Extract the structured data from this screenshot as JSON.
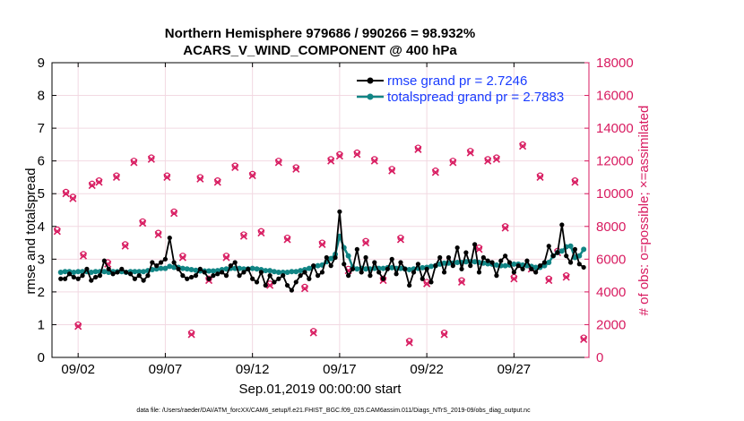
{
  "chart_data": {
    "type": "line",
    "title": "Northern Hemisphere 979686 / 990266 = 98.932%",
    "subtitle": "ACARS_V_WIND_COMPONENT @ 400 hPa",
    "xlabel": "Sep.01,2019 00:00:00 start",
    "ylabel": "rmse and totalspread",
    "y2label": "# of obs: o=possible; ×=assimilated",
    "xlim": [
      0.5,
      31.3
    ],
    "ylim": [
      0,
      9
    ],
    "y2lim": [
      0,
      18000
    ],
    "x_ticks": [
      2,
      7,
      12,
      17,
      22,
      27
    ],
    "x_tick_labels": [
      "09/02",
      "09/07",
      "09/12",
      "09/17",
      "09/22",
      "09/27"
    ],
    "y_ticks": [
      "0",
      "1",
      "2",
      "3",
      "4",
      "5",
      "6",
      "7",
      "8",
      "9"
    ],
    "y2_ticks": [
      "0",
      "2000",
      "4000",
      "6000",
      "8000",
      "10000",
      "12000",
      "14000",
      "16000",
      "18000"
    ],
    "grid": true,
    "legend_position": "top-right",
    "colors": {
      "rmse": "#000000",
      "spread": "#118585",
      "obs": "#d81b60",
      "legend_text": "#1a3cff",
      "right_axis": "#d81b60",
      "grid": "#f2d9e2"
    },
    "series": [
      {
        "name": "rmse grand pr = 2.7246",
        "axis": "left",
        "x": [
          1.0,
          1.25,
          1.5,
          1.75,
          2.0,
          2.25,
          2.5,
          2.75,
          3.0,
          3.25,
          3.5,
          3.75,
          4.0,
          4.25,
          4.5,
          4.75,
          5.0,
          5.25,
          5.5,
          5.75,
          6.0,
          6.25,
          6.5,
          6.75,
          7.0,
          7.25,
          7.5,
          7.75,
          8.0,
          8.25,
          8.5,
          8.75,
          9.0,
          9.25,
          9.5,
          9.75,
          10.0,
          10.25,
          10.5,
          10.75,
          11.0,
          11.25,
          11.5,
          11.75,
          12.0,
          12.25,
          12.5,
          12.75,
          13.0,
          13.25,
          13.5,
          13.75,
          14.0,
          14.25,
          14.5,
          14.75,
          15.0,
          15.25,
          15.5,
          15.75,
          16.0,
          16.25,
          16.5,
          16.75,
          17.0,
          17.25,
          17.5,
          17.75,
          18.0,
          18.25,
          18.5,
          18.75,
          19.0,
          19.25,
          19.5,
          19.75,
          20.0,
          20.25,
          20.5,
          20.75,
          21.0,
          21.25,
          21.5,
          21.75,
          22.0,
          22.25,
          22.5,
          22.75,
          23.0,
          23.25,
          23.5,
          23.75,
          24.0,
          24.25,
          24.5,
          24.75,
          25.0,
          25.25,
          25.5,
          25.75,
          26.0,
          26.25,
          26.5,
          26.75,
          27.0,
          27.25,
          27.5,
          27.75,
          28.0,
          28.25,
          28.5,
          28.75,
          29.0,
          29.25,
          29.5,
          29.75,
          30.0,
          30.25,
          30.5,
          30.75,
          31.0
        ],
        "values": [
          2.4,
          2.4,
          2.55,
          2.45,
          2.4,
          2.5,
          2.7,
          2.35,
          2.45,
          2.5,
          2.95,
          2.7,
          2.55,
          2.6,
          2.7,
          2.6,
          2.55,
          2.4,
          2.5,
          2.35,
          2.5,
          2.9,
          2.8,
          2.9,
          3.0,
          3.65,
          2.9,
          2.7,
          2.5,
          2.4,
          2.45,
          2.5,
          2.7,
          2.6,
          2.4,
          2.5,
          2.55,
          2.6,
          2.5,
          2.8,
          2.9,
          2.5,
          2.6,
          2.7,
          2.4,
          2.3,
          2.6,
          2.2,
          2.5,
          2.3,
          2.4,
          2.5,
          2.2,
          2.05,
          2.3,
          2.5,
          2.6,
          2.4,
          2.8,
          2.5,
          2.6,
          3.05,
          2.8,
          3.05,
          4.45,
          2.85,
          2.5,
          2.7,
          3.3,
          2.6,
          3.05,
          2.5,
          2.9,
          2.6,
          2.4,
          2.7,
          3.0,
          2.55,
          2.9,
          2.7,
          2.2,
          2.6,
          2.85,
          2.4,
          2.7,
          2.3,
          2.8,
          3.05,
          2.6,
          3.05,
          2.8,
          3.35,
          2.7,
          3.2,
          2.8,
          3.45,
          2.6,
          3.05,
          2.95,
          2.9,
          2.5,
          2.95,
          3.1,
          2.9,
          2.6,
          2.8,
          2.7,
          2.95,
          2.7,
          2.6,
          2.8,
          2.9,
          3.4,
          3.1,
          3.2,
          4.05,
          3.1,
          2.9,
          3.3,
          2.85,
          2.75
        ]
      },
      {
        "name": "totalspread grand pr = 2.7883",
        "axis": "left",
        "x": [
          1.0,
          1.25,
          1.5,
          1.75,
          2.0,
          2.25,
          2.5,
          2.75,
          3.0,
          3.25,
          3.5,
          3.75,
          4.0,
          4.25,
          4.5,
          4.75,
          5.0,
          5.25,
          5.5,
          5.75,
          6.0,
          6.25,
          6.5,
          6.75,
          7.0,
          7.25,
          7.5,
          7.75,
          8.0,
          8.25,
          8.5,
          8.75,
          9.0,
          9.25,
          9.5,
          9.75,
          10.0,
          10.25,
          10.5,
          10.75,
          11.0,
          11.25,
          11.5,
          11.75,
          12.0,
          12.25,
          12.5,
          12.75,
          13.0,
          13.25,
          13.5,
          13.75,
          14.0,
          14.25,
          14.5,
          14.75,
          15.0,
          15.25,
          15.5,
          15.75,
          16.0,
          16.25,
          16.5,
          16.75,
          17.0,
          17.25,
          17.5,
          17.75,
          18.0,
          18.25,
          18.5,
          18.75,
          19.0,
          19.25,
          19.5,
          19.75,
          20.0,
          20.25,
          20.5,
          20.75,
          21.0,
          21.25,
          21.5,
          21.75,
          22.0,
          22.25,
          22.5,
          22.75,
          23.0,
          23.25,
          23.5,
          23.75,
          24.0,
          24.25,
          24.5,
          24.75,
          25.0,
          25.25,
          25.5,
          25.75,
          26.0,
          26.25,
          26.5,
          26.75,
          27.0,
          27.25,
          27.5,
          27.75,
          28.0,
          28.25,
          28.5,
          28.75,
          29.0,
          29.25,
          29.5,
          29.75,
          30.0,
          30.25,
          30.5,
          30.75,
          31.0
        ],
        "values": [
          2.6,
          2.62,
          2.62,
          2.6,
          2.62,
          2.62,
          2.62,
          2.6,
          2.62,
          2.62,
          2.62,
          2.6,
          2.62,
          2.62,
          2.62,
          2.6,
          2.62,
          2.62,
          2.62,
          2.62,
          2.65,
          2.68,
          2.7,
          2.72,
          2.72,
          2.78,
          2.75,
          2.75,
          2.72,
          2.7,
          2.68,
          2.66,
          2.64,
          2.64,
          2.64,
          2.64,
          2.65,
          2.68,
          2.7,
          2.72,
          2.72,
          2.72,
          2.7,
          2.7,
          2.72,
          2.7,
          2.68,
          2.65,
          2.65,
          2.62,
          2.6,
          2.6,
          2.6,
          2.62,
          2.62,
          2.65,
          2.68,
          2.72,
          2.78,
          2.8,
          2.82,
          2.92,
          3.02,
          3.15,
          3.7,
          3.35,
          3.1,
          2.75,
          2.7,
          2.72,
          2.7,
          2.7,
          2.72,
          2.72,
          2.72,
          2.74,
          2.74,
          2.72,
          2.72,
          2.7,
          2.68,
          2.7,
          2.72,
          2.74,
          2.75,
          2.78,
          2.8,
          2.85,
          2.88,
          2.88,
          2.88,
          2.9,
          2.9,
          2.92,
          2.92,
          2.92,
          2.9,
          2.88,
          2.86,
          2.85,
          2.82,
          2.8,
          2.8,
          2.82,
          2.85,
          2.85,
          2.82,
          2.8,
          2.78,
          2.75,
          2.75,
          2.8,
          2.9,
          3.1,
          3.2,
          3.25,
          3.38,
          3.4,
          3.05,
          3.1,
          3.3
        ]
      },
      {
        "name": "# of obs possible (o)",
        "axis": "right",
        "x": [
          0.8,
          1.3,
          1.7,
          2.0,
          2.3,
          2.8,
          3.2,
          3.7,
          4.2,
          4.7,
          5.2,
          5.7,
          6.2,
          6.6,
          7.1,
          7.5,
          8.0,
          8.5,
          9.0,
          9.5,
          10.0,
          10.5,
          11.0,
          11.5,
          12.0,
          12.5,
          13.0,
          13.5,
          14.0,
          14.5,
          15.0,
          15.5,
          16.0,
          16.5,
          17.0,
          17.5,
          18.0,
          18.5,
          19.0,
          19.5,
          20.0,
          20.5,
          21.0,
          21.5,
          22.0,
          22.5,
          23.0,
          23.5,
          24.0,
          24.5,
          25.0,
          25.5,
          26.0,
          26.5,
          27.0,
          27.5,
          28.0,
          28.5,
          29.0,
          29.5,
          30.0,
          30.5,
          31.0
        ],
        "values": [
          7800,
          10100,
          9800,
          2000,
          6300,
          10600,
          10800,
          5800,
          11100,
          6900,
          12000,
          8300,
          12200,
          7600,
          11100,
          8900,
          6200,
          1500,
          11000,
          4800,
          10800,
          6200,
          11700,
          7500,
          11200,
          7700,
          4500,
          12000,
          7300,
          11600,
          4300,
          1600,
          7000,
          12100,
          12400,
          5400,
          12500,
          7100,
          12100,
          4800,
          11500,
          7300,
          1000,
          12800,
          4600,
          11400,
          1500,
          12000,
          4700,
          12600,
          6700,
          12100,
          12200,
          8000,
          4900,
          13000,
          5500,
          11100,
          4800,
          6500,
          5000,
          10800,
          1200
        ]
      },
      {
        "name": "# of obs assimilated (×)",
        "axis": "right",
        "x": [
          0.8,
          1.3,
          1.7,
          2.0,
          2.3,
          2.8,
          3.2,
          3.7,
          4.2,
          4.7,
          5.2,
          5.7,
          6.2,
          6.6,
          7.1,
          7.5,
          8.0,
          8.5,
          9.0,
          9.5,
          10.0,
          10.5,
          11.0,
          11.5,
          12.0,
          12.5,
          13.0,
          13.5,
          14.0,
          14.5,
          15.0,
          15.5,
          16.0,
          16.5,
          17.0,
          17.5,
          18.0,
          18.5,
          19.0,
          19.5,
          20.0,
          20.5,
          21.0,
          21.5,
          22.0,
          22.5,
          23.0,
          23.5,
          24.0,
          24.5,
          25.0,
          25.5,
          26.0,
          26.5,
          27.0,
          27.5,
          28.0,
          28.5,
          29.0,
          29.5,
          30.0,
          30.5,
          31.0
        ],
        "values": [
          7700,
          10000,
          9700,
          1900,
          6200,
          10500,
          10700,
          5700,
          11000,
          6800,
          11900,
          8200,
          12100,
          7500,
          11000,
          8800,
          6100,
          1400,
          10900,
          4700,
          10700,
          6100,
          11600,
          7400,
          11100,
          7600,
          4400,
          11900,
          7200,
          11500,
          4200,
          1500,
          6900,
          12000,
          12300,
          5300,
          12400,
          7000,
          12000,
          4700,
          11400,
          7200,
          900,
          12700,
          4500,
          11300,
          1400,
          11900,
          4600,
          12500,
          6600,
          12000,
          12100,
          7900,
          4800,
          12900,
          5400,
          11000,
          4700,
          6400,
          4900,
          10700,
          1100
        ]
      }
    ],
    "footer": "data file: /Users/raeder/DAI/ATM_forcXX/CAM6_setup/f.e21.FHIST_BGC.f09_025.CAM6assim.011/Diags_NTrS_2019-09/obs_diag_output.nc"
  }
}
